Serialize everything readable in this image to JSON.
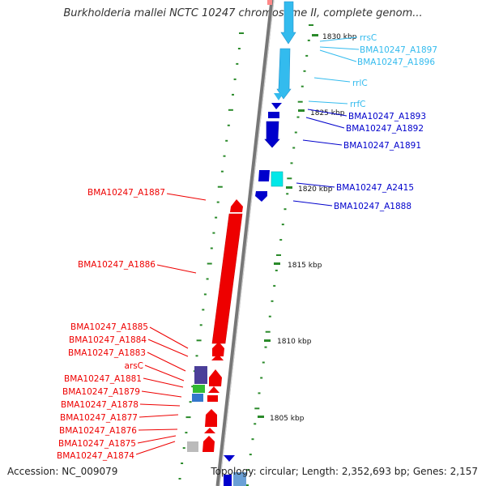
{
  "title": "Burkholderia mallei NCTC 10247 chromosome II, complete genom...",
  "footer": {
    "accession": "Accession: NC_009079",
    "topology": "Topology: circular; Length: 2,352,693 bp; Genes: 2,157"
  },
  "colors": {
    "forward_strand": "#0000cc",
    "reverse_strand": "#ee0000",
    "rna": "#33bbee",
    "tick": "#2a8a2a"
  },
  "kbp_labels": [
    "1830 kbp",
    "1825 kbp",
    "1820 kbp",
    "1815 kbp",
    "1810 kbp",
    "1805 kbp"
  ],
  "genes_right": [
    {
      "name": "rrsC",
      "type": "rna"
    },
    {
      "name": "BMA10247_A1897",
      "type": "rna"
    },
    {
      "name": "BMA10247_A1896",
      "type": "rna"
    },
    {
      "name": "rrlC",
      "type": "rna"
    },
    {
      "name": "rrfC",
      "type": "rna"
    },
    {
      "name": "BMA10247_A1893",
      "type": "cds"
    },
    {
      "name": "BMA10247_A1892",
      "type": "cds"
    },
    {
      "name": "BMA10247_A1891",
      "type": "cds"
    },
    {
      "name": "BMA10247_A2415",
      "type": "cds"
    },
    {
      "name": "BMA10247_A1888",
      "type": "cds"
    }
  ],
  "genes_left": [
    {
      "name": "BMA10247_A1887"
    },
    {
      "name": "BMA10247_A1886"
    },
    {
      "name": "BMA10247_A1885"
    },
    {
      "name": "BMA10247_A1884"
    },
    {
      "name": "BMA10247_A1883"
    },
    {
      "name": "arsC"
    },
    {
      "name": "BMA10247_A1881"
    },
    {
      "name": "BMA10247_A1879"
    },
    {
      "name": "BMA10247_A1878"
    },
    {
      "name": "BMA10247_A1877"
    },
    {
      "name": "BMA10247_A1876"
    },
    {
      "name": "BMA10247_A1875"
    },
    {
      "name": "BMA10247_A1874"
    }
  ]
}
